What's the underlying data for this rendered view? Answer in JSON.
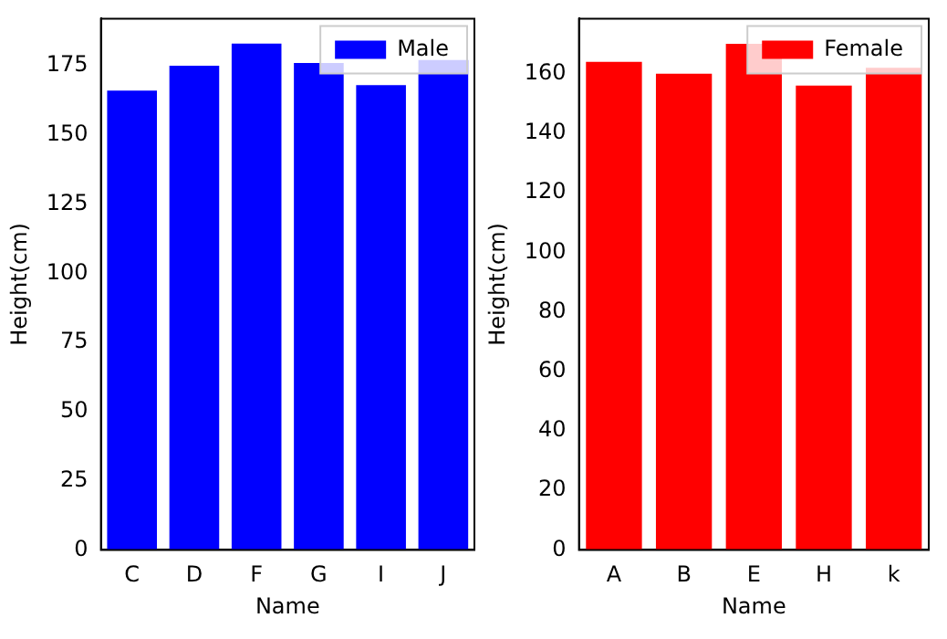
{
  "chart_data": [
    {
      "type": "bar",
      "xlabel": "Name",
      "ylabel": "Height(cm)",
      "categories": [
        "C",
        "D",
        "F",
        "G",
        "I",
        "J"
      ],
      "series": [
        {
          "name": "Male",
          "color": "#0000ff",
          "values": [
            166,
            175,
            183,
            176,
            168,
            177
          ]
        }
      ],
      "ylim": [
        0,
        192
      ],
      "yticks": [
        0,
        25,
        50,
        75,
        100,
        125,
        150,
        175
      ],
      "grid": false,
      "legend": "top right"
    },
    {
      "type": "bar",
      "xlabel": "Name",
      "ylabel": "Height(cm)",
      "categories": [
        "A",
        "B",
        "E",
        "H",
        "k"
      ],
      "series": [
        {
          "name": "Female",
          "color": "#ff0000",
          "values": [
            164,
            160,
            170,
            156,
            162
          ]
        }
      ],
      "ylim": [
        0,
        178.5
      ],
      "yticks": [
        0,
        20,
        40,
        60,
        80,
        100,
        120,
        140,
        160
      ],
      "grid": false,
      "legend": "top right"
    }
  ]
}
